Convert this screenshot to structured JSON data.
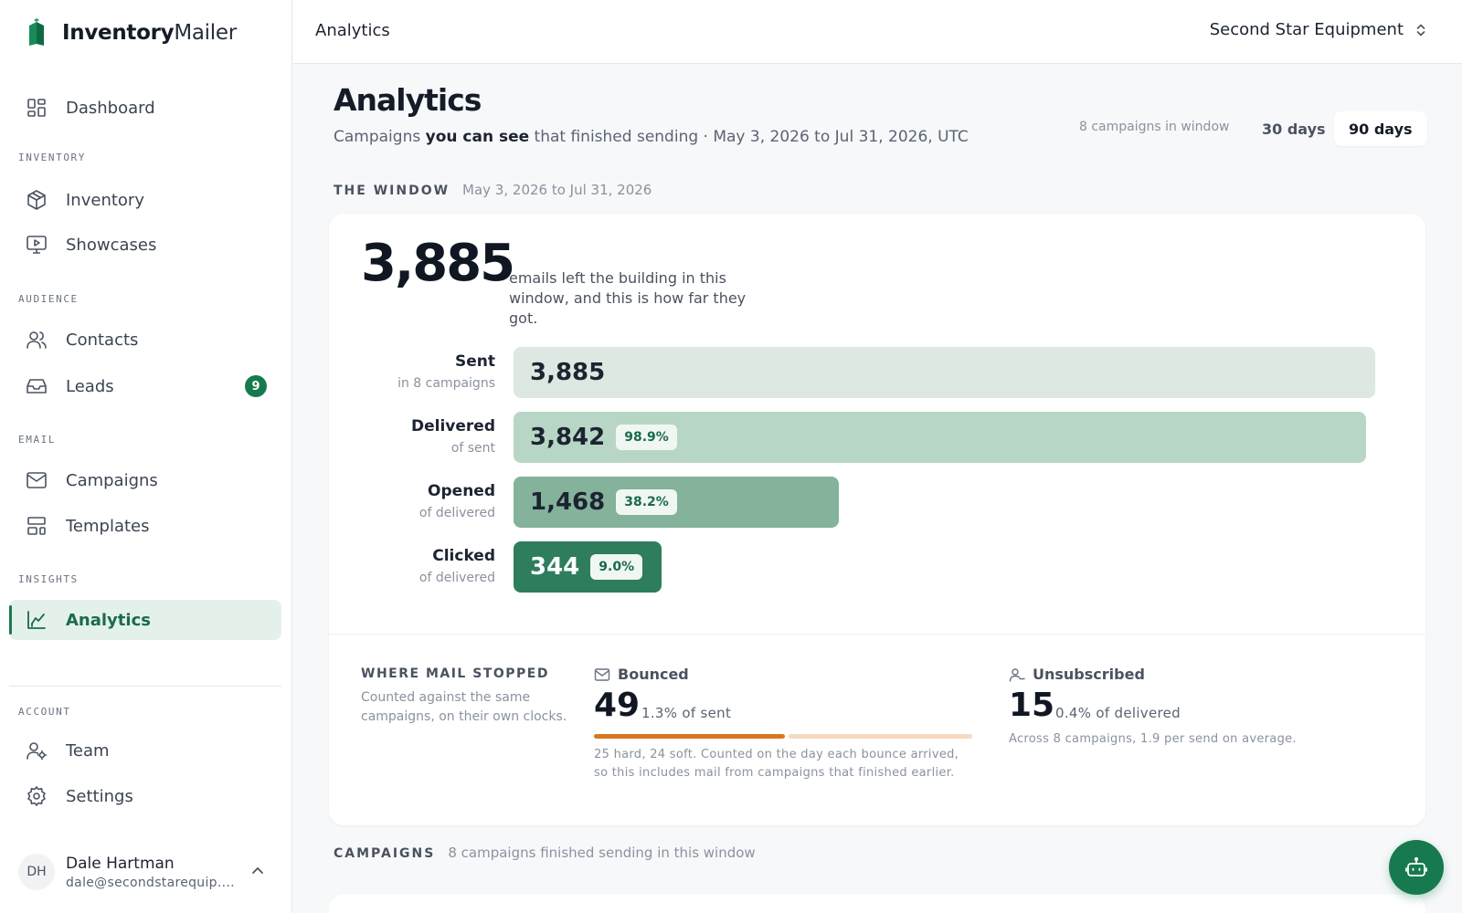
{
  "brand": {
    "name_bold": "Inventory",
    "name_light": "Mailer"
  },
  "sidebar": {
    "dashboard": "Dashboard",
    "sections": {
      "inventory": "INVENTORY",
      "audience": "AUDIENCE",
      "email": "EMAIL",
      "insights": "INSIGHTS",
      "account": "ACCOUNT"
    },
    "items": {
      "inventory": "Inventory",
      "showcases": "Showcases",
      "contacts": "Contacts",
      "leads": "Leads",
      "leads_badge": "9",
      "campaigns": "Campaigns",
      "templates": "Templates",
      "analytics": "Analytics",
      "team": "Team",
      "settings": "Settings"
    },
    "user": {
      "initials": "DH",
      "name": "Dale Hartman",
      "email": "dale@secondstarequip...."
    }
  },
  "topbar": {
    "title": "Analytics",
    "org": "Second Star Equipment"
  },
  "page": {
    "title": "Analytics",
    "sub_pre": "Campaigns ",
    "sub_bold": "you can see",
    "sub_post": " that finished sending · May 3, 2026 to Jul 31, 2026, UTC",
    "window_count": "8 campaigns in window",
    "ranges": [
      "30 days",
      "90 days"
    ],
    "active_range": "90 days"
  },
  "window": {
    "label": "THE WINDOW",
    "dates": "May 3, 2026 to Jul 31, 2026",
    "total": "3,885",
    "total_desc": "emails left the building in this window, and this is how far they got."
  },
  "funnel": [
    {
      "stage": "Sent",
      "sub": "in 8 campaigns",
      "value": "3,885",
      "pct": null,
      "fraction": 1.0
    },
    {
      "stage": "Delivered",
      "sub": "of sent",
      "value": "3,842",
      "pct": "98.9%",
      "fraction": 0.989
    },
    {
      "stage": "Opened",
      "sub": "of delivered",
      "value": "1,468",
      "pct": "38.2%",
      "fraction": 0.378
    },
    {
      "stage": "Clicked",
      "sub": "of delivered",
      "value": "344",
      "pct": "9.0%",
      "fraction": 0.089
    }
  ],
  "colors": {
    "brand": "#177a4f",
    "bar_sent": "#dce8e1",
    "bar_delivered": "#b8d6c6",
    "bar_opened": "#84b29b",
    "bar_clicked": "#2e7d5c",
    "hard_bounce": "#d9771f",
    "soft_bounce": "#f6d9bf"
  },
  "stops": {
    "label": "WHERE MAIL STOPPED",
    "desc": "Counted against the same campaigns, on their own clocks.",
    "bounced": {
      "label": "Bounced",
      "value": "49",
      "rate": "1.3% of sent",
      "hard": 25,
      "soft": 24,
      "note_1": "25 hard, 24 soft. Counted on the day each bounce arrived,",
      "note_2": "so this includes mail from campaigns that finished earlier."
    },
    "unsubscribed": {
      "label": "Unsubscribed",
      "value": "15",
      "rate": "0.4% of delivered",
      "note": "Across 8 campaigns, 1.9 per send on average."
    }
  },
  "campaigns_section": {
    "label": "CAMPAIGNS",
    "meta": "8 campaigns finished sending in this window"
  }
}
